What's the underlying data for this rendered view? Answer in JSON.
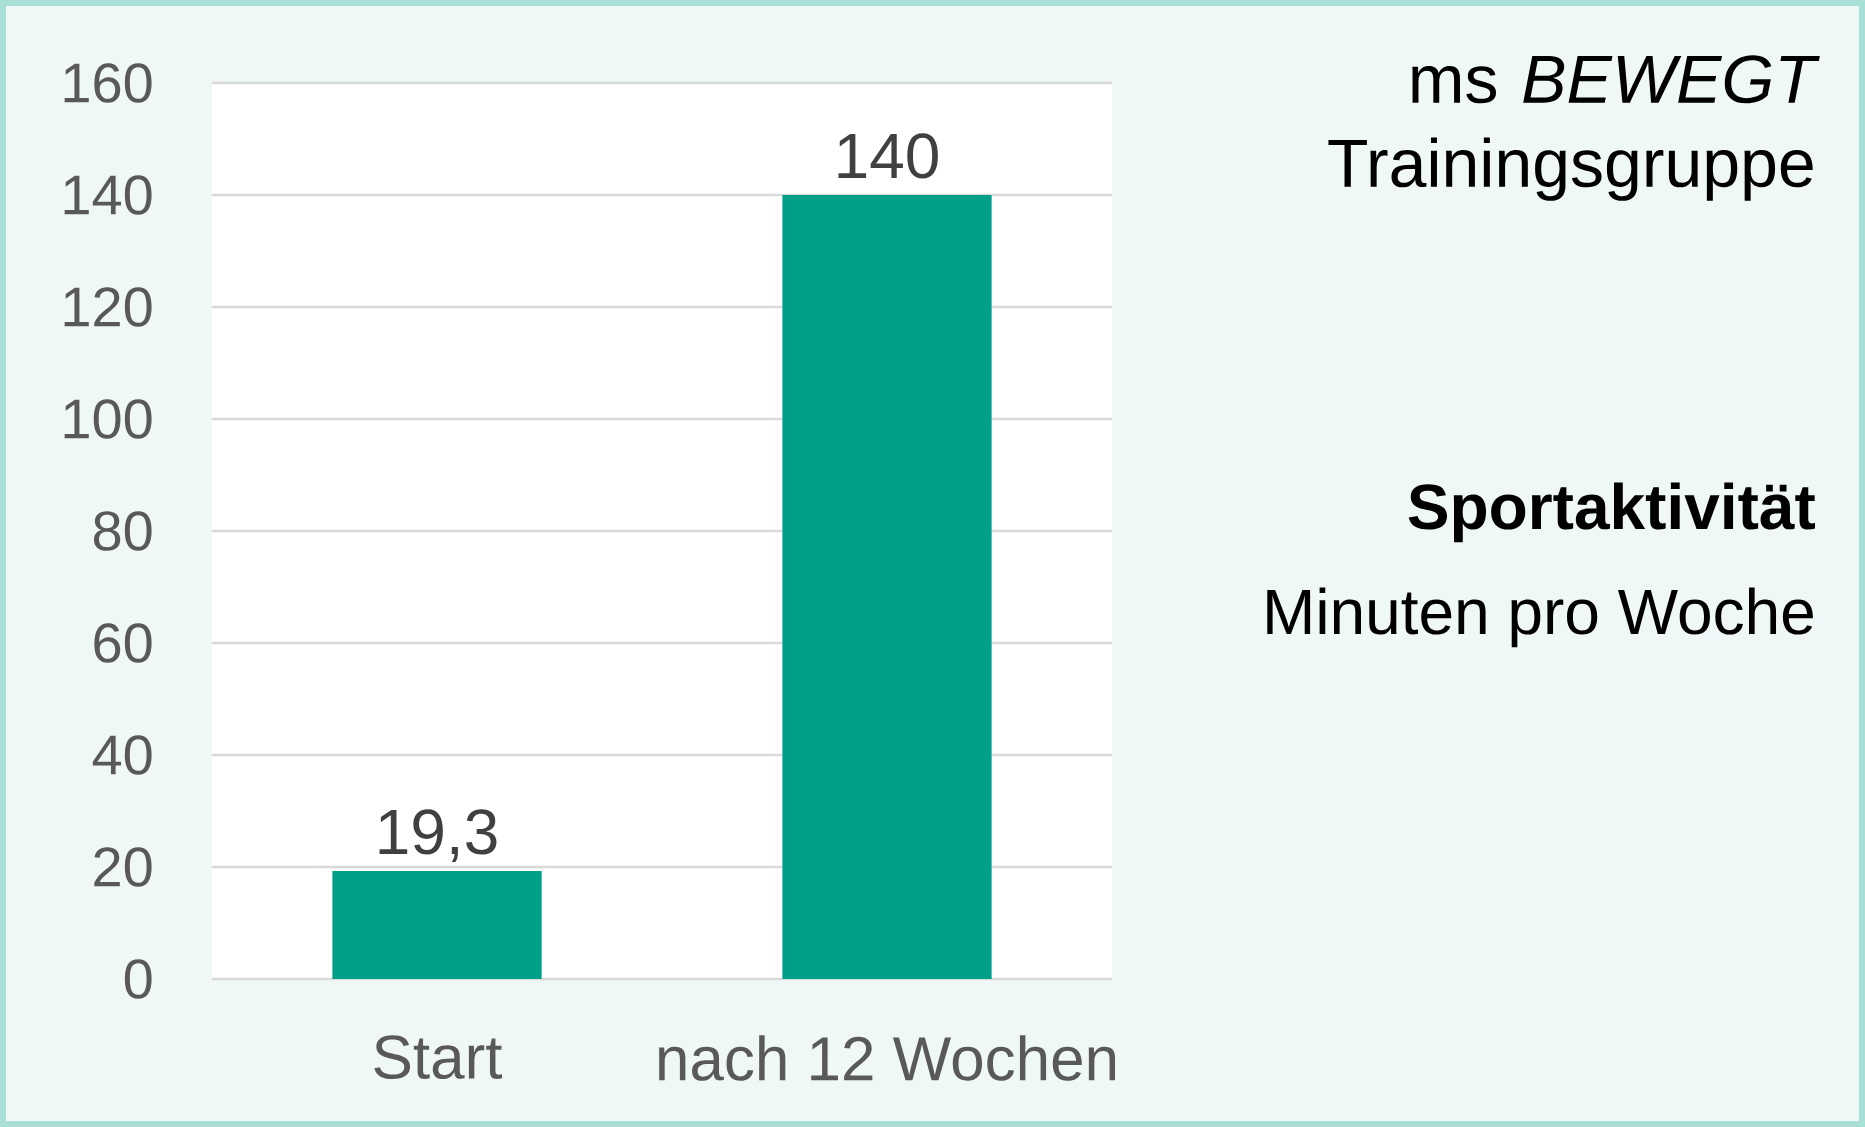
{
  "chart_data": {
    "type": "bar",
    "title": "ms *BEWEGT* Trainingsgruppe",
    "subtitle": "Sportaktivität",
    "ylabel": "Minuten pro Woche",
    "categories": [
      "Start",
      "nach 12 Wochen"
    ],
    "values": [
      19.3,
      140
    ],
    "value_labels": [
      "19,3",
      "140"
    ],
    "color": "#00a088",
    "ylim": [
      0,
      160
    ],
    "yticks": [
      0,
      20,
      40,
      60,
      80,
      100,
      120,
      140,
      160
    ],
    "grid": "y"
  }
}
